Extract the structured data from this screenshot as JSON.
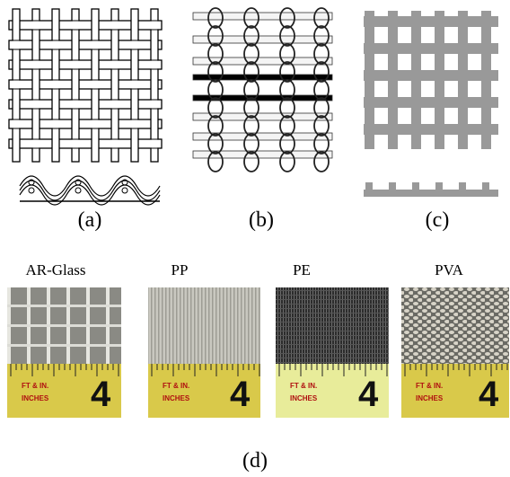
{
  "panels": [
    {
      "label": "(a)"
    },
    {
      "label": "(b)"
    },
    {
      "label": "(c)"
    }
  ],
  "photos": {
    "label": "(d)",
    "items": [
      {
        "name": "AR-Glass"
      },
      {
        "name": "PP"
      },
      {
        "name": "PE"
      },
      {
        "name": "PVA"
      }
    ]
  },
  "tape": {
    "mark": "4",
    "units": "INCHES",
    "scale": "FT & IN."
  }
}
